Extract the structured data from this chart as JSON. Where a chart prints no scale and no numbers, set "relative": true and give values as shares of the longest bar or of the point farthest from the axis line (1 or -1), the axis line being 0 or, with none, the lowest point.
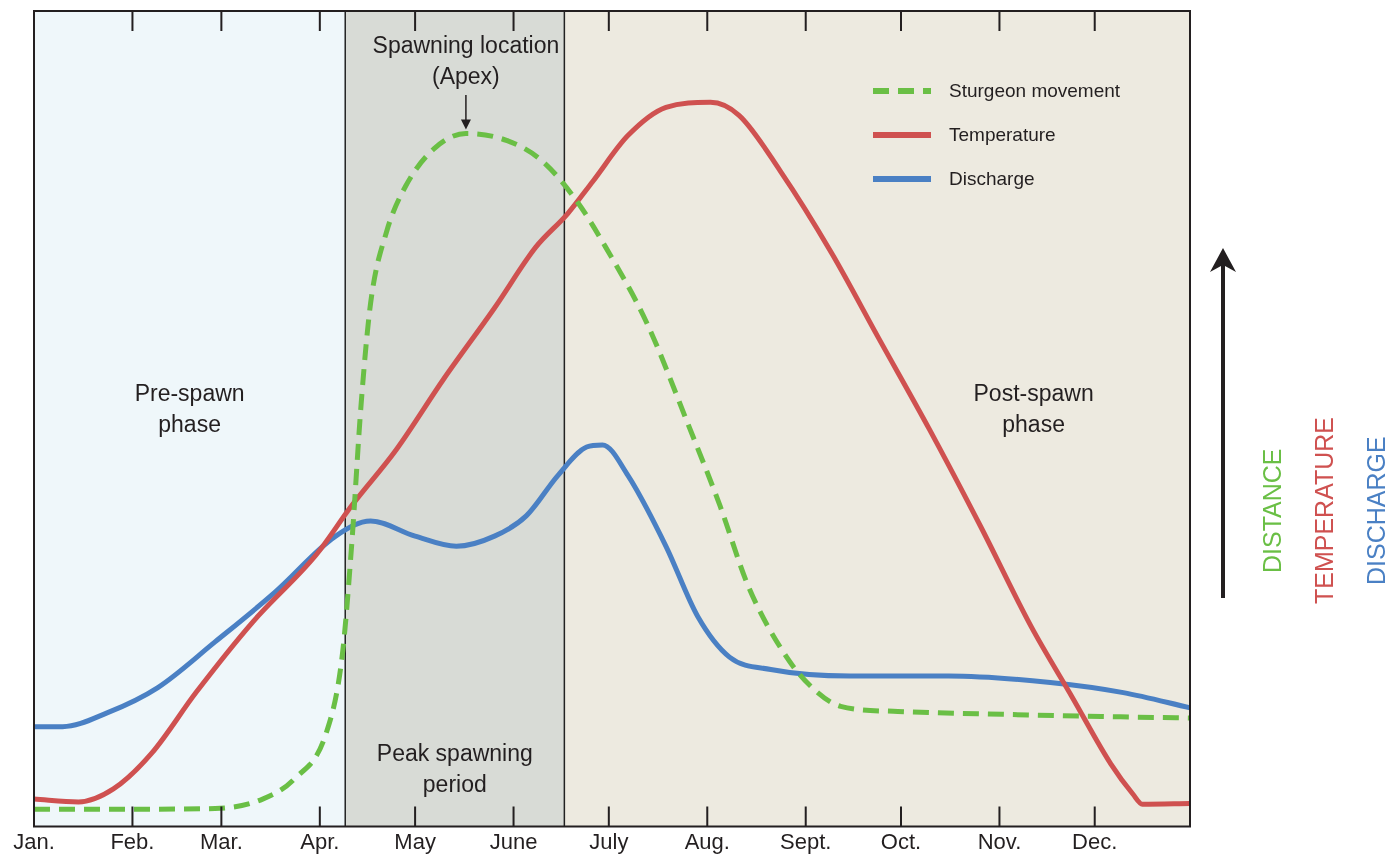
{
  "chart_data": {
    "type": "line",
    "relative": true,
    "xlim": [
      "--01-01",
      "--12-31"
    ],
    "xticks": [
      {
        "value": "--01-01",
        "label": "Jan."
      },
      {
        "value": "--02-01",
        "label": "Feb."
      },
      {
        "value": "--03-01",
        "label": "Mar."
      },
      {
        "value": "--04-01",
        "label": "Apr."
      },
      {
        "value": "--05-01",
        "label": "May"
      },
      {
        "value": "--06-01",
        "label": "June"
      },
      {
        "value": "--07-01",
        "label": "July"
      },
      {
        "value": "--08-01",
        "label": "Aug."
      },
      {
        "value": "--09-01",
        "label": "Sept."
      },
      {
        "value": "--10-01",
        "label": "Oct."
      },
      {
        "value": "--11-01",
        "label": "Nov."
      },
      {
        "value": "--12-01",
        "label": "Dec."
      }
    ],
    "legend": "top right",
    "marker": "none",
    "series": [
      {
        "name": "Sturgeon movement",
        "color": "#6abf45",
        "line_style": "dashed",
        "x": [
          "--01-01",
          "--01-31",
          "--02-27",
          "--03-14",
          "--03-24",
          "--04-03",
          "--04-08",
          "--04-11",
          "--04-14",
          "--04-17",
          "--04-22",
          "--04-28",
          "--05-07",
          "--05-17",
          "--05-30",
          "--06-10",
          "--06-21",
          "--06-30",
          "--07-13",
          "--07-26",
          "--08-05",
          "--08-14",
          "--08-26",
          "--09-03",
          "--09-12",
          "--09-30",
          "--11-02",
          "--12-03",
          "--12-31"
        ],
        "values": [
          0.024,
          0.024,
          0.025,
          0.038,
          0.066,
          0.129,
          0.234,
          0.387,
          0.583,
          0.723,
          0.821,
          0.884,
          0.936,
          0.957,
          0.947,
          0.919,
          0.863,
          0.8,
          0.695,
          0.555,
          0.443,
          0.331,
          0.234,
          0.192,
          0.166,
          0.159,
          0.155,
          0.152,
          0.15
        ]
      },
      {
        "name": "Temperature",
        "color": "#cf5150",
        "line_style": "solid",
        "x": [
          "--01-01",
          "--01-15",
          "--01-26",
          "--02-07",
          "--02-21",
          "--03-11",
          "--03-31",
          "--04-11",
          "--04-25",
          "--05-10",
          "--05-26",
          "--06-08",
          "--06-18",
          "--06-26",
          "--07-07",
          "--07-19",
          "--08-02",
          "--08-11",
          "--08-24",
          "--09-09",
          "--09-24",
          "--10-10",
          "--10-26",
          "--11-11",
          "--11-24",
          "--12-06",
          "--12-13",
          "--12-16",
          "--12-31"
        ],
        "values": [
          0.038,
          0.034,
          0.052,
          0.101,
          0.185,
          0.283,
          0.376,
          0.443,
          0.52,
          0.618,
          0.716,
          0.8,
          0.846,
          0.891,
          0.954,
          0.993,
          1,
          0.982,
          0.905,
          0.793,
          0.674,
          0.548,
          0.415,
          0.276,
          0.178,
          0.087,
          0.045,
          0.031,
          0.032
        ]
      },
      {
        "name": "Discharge",
        "color": "#4a80c4",
        "line_style": "solid",
        "x": [
          "--01-01",
          "--01-10",
          "--01-24",
          "--02-09",
          "--02-27",
          "--03-18",
          "--04-06",
          "--04-17",
          "--05-01",
          "--05-14",
          "--05-26",
          "--06-05",
          "--06-15",
          "--06-24",
          "--06-29",
          "--07-07",
          "--07-19",
          "--07-29",
          "--08-08",
          "--08-21",
          "--09-15",
          "--10-16",
          "--11-17",
          "--12-10",
          "--12-31"
        ],
        "values": [
          0.138,
          0.138,
          0.157,
          0.192,
          0.255,
          0.324,
          0.401,
          0.422,
          0.401,
          0.387,
          0.401,
          0.429,
          0.485,
          0.524,
          0.527,
          0.485,
          0.387,
          0.29,
          0.234,
          0.217,
          0.208,
          0.208,
          0.199,
          0.185,
          0.164
        ]
      }
    ],
    "bands": [
      {
        "axis": "x",
        "from": "--01-01",
        "to": "--04-09",
        "label": "Pre-spawn phase",
        "color": "#eff7fa"
      },
      {
        "axis": "x",
        "from": "--04-09",
        "to": "--06-17",
        "label": "Peak spawning period",
        "color": "#d8dbd6"
      },
      {
        "axis": "x",
        "from": "--06-17",
        "to": "--12-31",
        "label": "Post-spawn phase",
        "color": "#edeae0"
      }
    ],
    "ref_lines": [
      {
        "axis": "x",
        "value": "--04-09",
        "color": "#222222"
      },
      {
        "axis": "x",
        "value": "--06-17",
        "color": "#222222"
      }
    ],
    "annotations": [
      {
        "text": "Spawning location (Apex)",
        "x": "--05-17",
        "y": 0.957
      },
      "DISTANCE",
      "TEMPERATURE",
      "DISCHARGE"
    ]
  }
}
